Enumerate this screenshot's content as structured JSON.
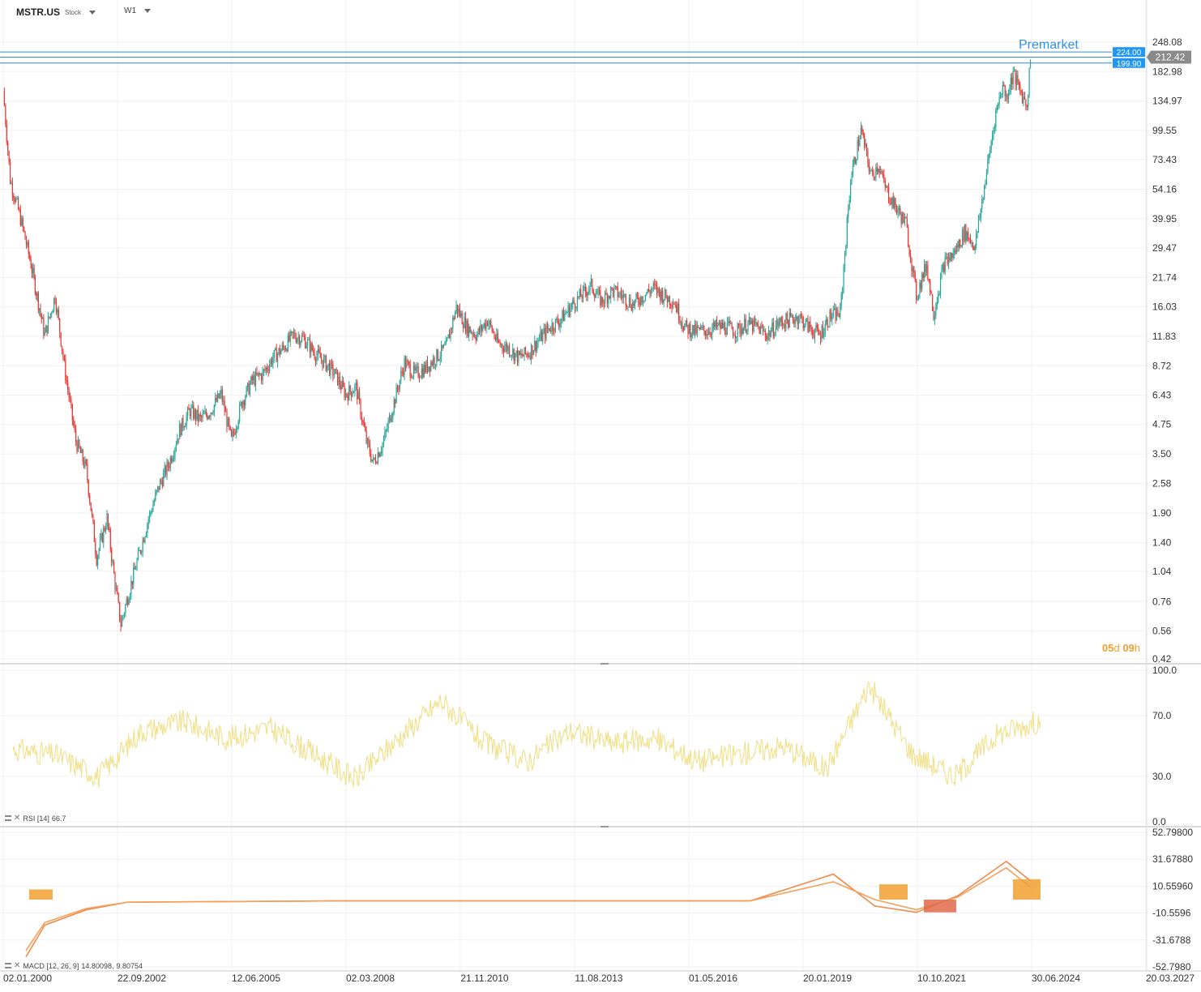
{
  "header": {
    "symbol": "MSTR.US",
    "kind": "Stock",
    "timeframe": "W1"
  },
  "annotation": {
    "premarket": "Premarket"
  },
  "countdown": {
    "days": "05",
    "d": "d",
    "hours": "09",
    "h": "h"
  },
  "price_axis": [
    "248.08",
    "182.98",
    "134.97",
    "99.55",
    "73.43",
    "54.16",
    "39.95",
    "29.47",
    "21.74",
    "16.03",
    "11.83",
    "8.72",
    "6.43",
    "4.75",
    "3.50",
    "2.58",
    "1.90",
    "1.40",
    "1.04",
    "0.76",
    "0.56",
    "0.42"
  ],
  "time_axis": [
    "02.01.2000",
    "22.09.2002",
    "12.06.2005",
    "02.03.2008",
    "21.11.2010",
    "11.08.2013",
    "01.05.2016",
    "20.01.2019",
    "10.10.2021",
    "30.06.2024",
    "20.03.2027"
  ],
  "tags": {
    "current": "212.42",
    "upper": "224.00",
    "lower": "199.90"
  },
  "rsi": {
    "label": "RSI [14]",
    "value": "66.7",
    "axis": [
      "100.0",
      "70.0",
      "30.0",
      "0.0"
    ]
  },
  "macd": {
    "label": "MACD [12, 26, 9]",
    "value1": "14.80098,",
    "value2": "9.80754",
    "axis": [
      "52.79800",
      "31.67880",
      "10.55960",
      "-10.5596",
      "-31.6788",
      "-52.7980"
    ]
  },
  "colors": {
    "up": "#26a69a",
    "down": "#e53935",
    "tag_blue": "#2196f3",
    "tag_gray": "#8a8a8a",
    "rsi": "#f0e08a",
    "macd": "#f08a4b",
    "signal": "#f5a05a",
    "countdown": "#f0a030"
  },
  "chart_data": [
    {
      "type": "candlestick",
      "title": "MSTR.US",
      "scale": "log",
      "ylim": [
        0.42,
        248.08
      ],
      "xlim": [
        "2000-01-02",
        "2027-03-20"
      ],
      "x": [
        "2000-01",
        "2000-03",
        "2000-06",
        "2000-09",
        "2001-01",
        "2001-04",
        "2001-07",
        "2001-10",
        "2002-01",
        "2002-04",
        "2002-07",
        "2002-09",
        "2002-11",
        "2003-01",
        "2003-04",
        "2003-07",
        "2003-10",
        "2004-01",
        "2004-04",
        "2004-07",
        "2004-10",
        "2005-01",
        "2005-04",
        "2005-07",
        "2005-10",
        "2006-01",
        "2006-04",
        "2006-07",
        "2006-10",
        "2007-01",
        "2007-04",
        "2007-07",
        "2007-10",
        "2008-01",
        "2008-04",
        "2008-07",
        "2008-10",
        "2008-12",
        "2009-03",
        "2009-06",
        "2009-09",
        "2009-12",
        "2010-03",
        "2010-06",
        "2010-09",
        "2010-12",
        "2011-03",
        "2011-06",
        "2011-09",
        "2011-12",
        "2012-03",
        "2012-06",
        "2012-09",
        "2012-12",
        "2013-03",
        "2013-06",
        "2013-09",
        "2013-12",
        "2014-03",
        "2014-06",
        "2014-09",
        "2014-12",
        "2015-03",
        "2015-06",
        "2015-09",
        "2015-12",
        "2016-03",
        "2016-06",
        "2016-09",
        "2016-12",
        "2017-03",
        "2017-06",
        "2017-09",
        "2017-12",
        "2018-03",
        "2018-06",
        "2018-09",
        "2018-12",
        "2019-03",
        "2019-06",
        "2019-09",
        "2019-12",
        "2020-03",
        "2020-06",
        "2020-09",
        "2020-12",
        "2021-02",
        "2021-04",
        "2021-07",
        "2021-10",
        "2022-01",
        "2022-04",
        "2022-06",
        "2022-09",
        "2022-12",
        "2023-03",
        "2023-06",
        "2023-09",
        "2023-12",
        "2024-02",
        "2024-03",
        "2024-05",
        "2024-07",
        "2024-09",
        "2024-10"
      ],
      "close": [
        150,
        60,
        40,
        25,
        12,
        18,
        8,
        4,
        3,
        1.2,
        1.8,
        1.0,
        0.6,
        0.8,
        1.2,
        1.8,
        2.5,
        3.2,
        4.5,
        5.5,
        5.0,
        5.5,
        6.5,
        4.0,
        6.0,
        7.5,
        8.0,
        9.5,
        10.5,
        12.0,
        11.5,
        10.0,
        9.0,
        8.0,
        6.5,
        7.0,
        4.0,
        3.2,
        4.0,
        6.0,
        9.0,
        8.0,
        8.5,
        9.5,
        10.5,
        16.0,
        13.0,
        12.0,
        14.0,
        11.0,
        10.5,
        9.5,
        10.0,
        11.5,
        13.0,
        14.0,
        16.0,
        18.0,
        20.0,
        17.0,
        19.0,
        18.0,
        16.5,
        18.0,
        19.5,
        18.0,
        17.0,
        13.0,
        12.5,
        12.5,
        13.0,
        13.0,
        12.5,
        13.5,
        13.0,
        12.0,
        13.5,
        14.0,
        14.5,
        13.0,
        12.0,
        14.5,
        15.0,
        60.0,
        100.0,
        62.0,
        70.0,
        55.0,
        45.0,
        38.0,
        18.0,
        25.0,
        15.0,
        25.0,
        28.0,
        35.0,
        30.0,
        60.0,
        120.0,
        160.0,
        140.0,
        180.0,
        150.0,
        130.0,
        212.42
      ]
    },
    {
      "type": "line",
      "title": "RSI [14]",
      "ylim": [
        0,
        100
      ],
      "x": [
        "2000",
        "2001",
        "2002",
        "2003",
        "2004",
        "2005",
        "2006",
        "2007",
        "2008",
        "2009",
        "2010",
        "2011",
        "2012",
        "2013",
        "2014",
        "2015",
        "2016",
        "2017",
        "2018",
        "2019",
        "2020",
        "2021",
        "2022",
        "2023",
        "2024"
      ],
      "values": [
        48,
        44,
        30,
        60,
        66,
        55,
        62,
        45,
        28,
        55,
        80,
        52,
        40,
        60,
        52,
        55,
        40,
        45,
        50,
        35,
        90,
        45,
        30,
        58,
        66.7
      ]
    },
    {
      "type": "line",
      "title": "MACD [12, 26, 9]",
      "ylim": [
        -52.798,
        52.798
      ],
      "x": [
        "2000",
        "2001",
        "2002",
        "2003",
        "2008",
        "2013",
        "2018",
        "2020",
        "2021",
        "2022",
        "2023",
        "2024-03",
        "2024-10"
      ],
      "series": [
        {
          "values": [
            -45,
            -20,
            -8,
            -2,
            -1,
            -1,
            -1,
            20,
            -5,
            -10,
            3,
            30,
            14.80098
          ]
        },
        {
          "values": [
            -40,
            -18,
            -7,
            -2,
            -1,
            -1,
            -1,
            14,
            0,
            -8,
            2,
            25,
            9.80754
          ]
        }
      ]
    }
  ]
}
